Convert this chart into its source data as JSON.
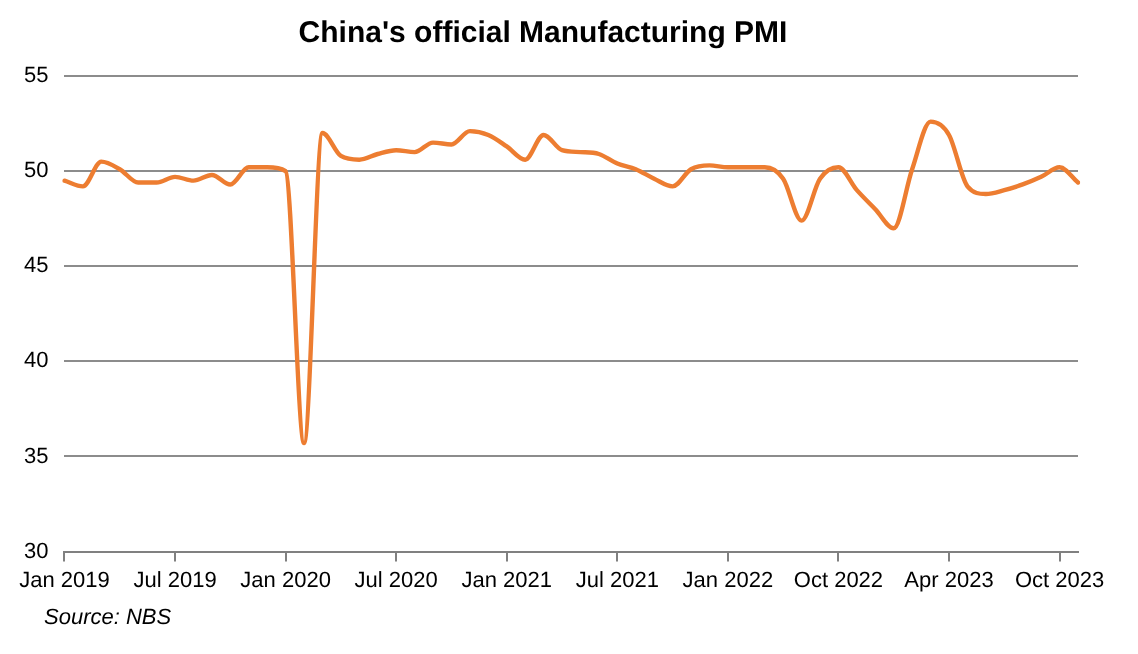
{
  "chart_data": {
    "type": "line",
    "title": "China's official Manufacturing PMI",
    "categories": [
      "Jan 2019",
      null,
      null,
      null,
      null,
      null,
      "Jul 2019",
      null,
      null,
      null,
      null,
      null,
      "Jan 2020",
      null,
      null,
      null,
      null,
      null,
      "Jul 2020",
      null,
      null,
      null,
      null,
      null,
      "Jan 2021",
      null,
      null,
      null,
      null,
      null,
      "Jul 2021",
      null,
      null,
      null,
      null,
      null,
      "Jan 2022",
      null,
      null,
      null,
      null,
      null,
      "Oct 2022",
      null,
      null,
      null,
      null,
      null,
      "Apr 2023",
      null,
      null,
      null,
      null,
      null,
      "Oct 2023",
      null
    ],
    "series": [
      {
        "color": "#ed7d31",
        "values": [
          49.5,
          49.2,
          50.5,
          50.1,
          49.4,
          49.4,
          49.7,
          49.5,
          49.8,
          49.3,
          50.2,
          50.2,
          50.0,
          35.7,
          52.0,
          50.8,
          50.6,
          50.9,
          51.1,
          51.0,
          51.5,
          51.4,
          52.1,
          51.9,
          51.3,
          50.6,
          51.9,
          51.1,
          51.0,
          50.9,
          50.4,
          50.1,
          49.6,
          49.2,
          50.1,
          50.3,
          50.2,
          50.2,
          50.2,
          49.6,
          47.4,
          49.6,
          50.2,
          49.0,
          48.0,
          47.0,
          50.1,
          52.6,
          51.9,
          49.2,
          48.8,
          49.0,
          49.3,
          49.7,
          50.2,
          49.4
        ]
      }
    ],
    "ylim": [
      30,
      55
    ],
    "yticks": [
      30,
      35,
      40,
      45,
      50,
      55
    ],
    "grid": "y",
    "legend": false,
    "marker": "none",
    "line_style": "solid",
    "annotations": [
      "Source: NBS"
    ]
  }
}
